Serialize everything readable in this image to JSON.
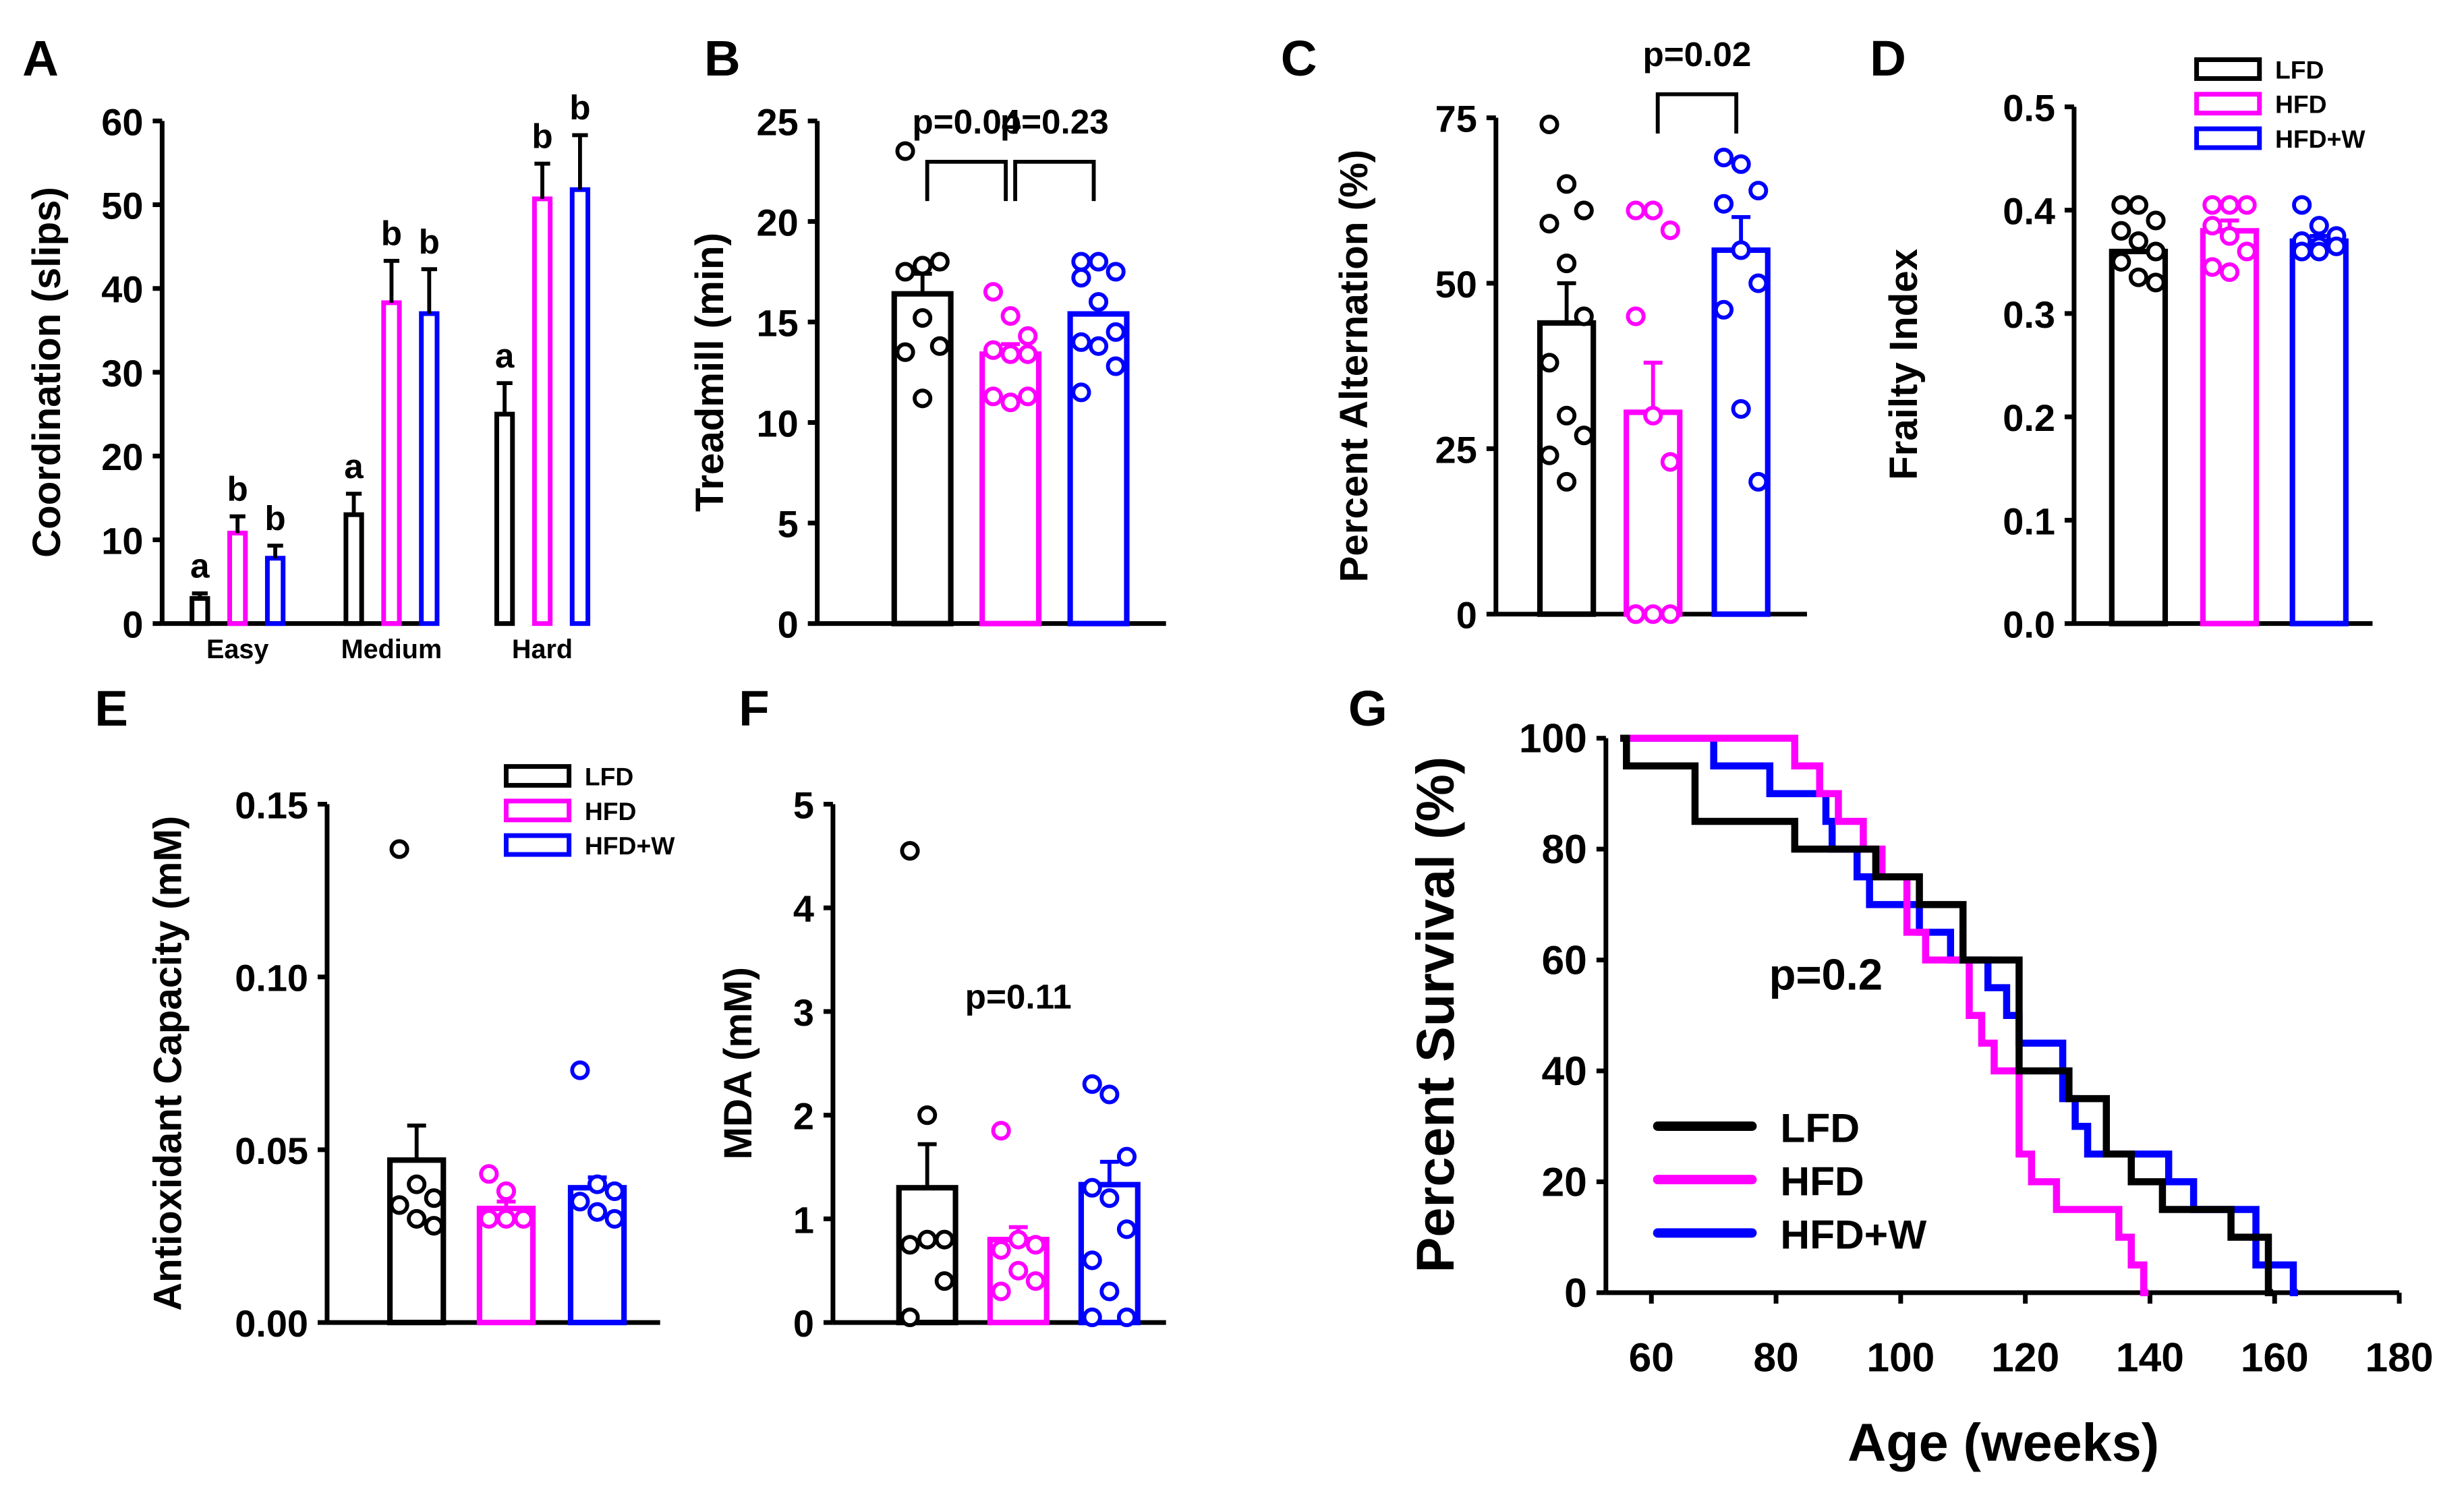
{
  "colors": {
    "LFD": "#000000",
    "HFD": "#ff00ff",
    "HFD+W": "#0000ff"
  },
  "chart_data": [
    {
      "panel": "A",
      "type": "bar",
      "ylabel": "Coordination (slips)",
      "ylim": [
        0,
        60
      ],
      "yticks": [
        0,
        10,
        20,
        30,
        40,
        50,
        60
      ],
      "categories": [
        "Easy",
        "Medium",
        "Hard"
      ],
      "series": [
        {
          "name": "LFD",
          "values": [
            3,
            13,
            25
          ],
          "errors": [
            0.6,
            2.5,
            3.7
          ],
          "letters": [
            "a",
            "a",
            "a"
          ]
        },
        {
          "name": "HFD",
          "values": [
            10.8,
            38.3,
            50.7
          ],
          "errors": [
            2,
            5,
            4.2
          ],
          "letters": [
            "b",
            "b",
            "b"
          ]
        },
        {
          "name": "HFD+W",
          "values": [
            7.8,
            37,
            51.8
          ],
          "errors": [
            1.5,
            5.3,
            6.5
          ],
          "letters": [
            "b",
            "b",
            "b"
          ]
        }
      ]
    },
    {
      "panel": "B",
      "type": "bar",
      "ylabel": "Treadmill (min)",
      "ylim": [
        0,
        25
      ],
      "yticks": [
        0,
        5,
        10,
        15,
        20,
        25
      ],
      "series": [
        {
          "name": "LFD",
          "mean": 16.4,
          "error": 1.0,
          "points": [
            23.5,
            17.8,
            18,
            17.5,
            15.2,
            13.8,
            13.5,
            11.2
          ]
        },
        {
          "name": "HFD",
          "mean": 13.4,
          "error": 0.5,
          "points": [
            16.5,
            15.3,
            14.3,
            13.6,
            13.4,
            13.4,
            11.3,
            11,
            11.3
          ]
        },
        {
          "name": "HFD+W",
          "mean": 15.4,
          "error": 0.7,
          "points": [
            18,
            18,
            17.5,
            17.2,
            16,
            14.5,
            14,
            13.8,
            12.8,
            11.5
          ]
        }
      ],
      "annotations": [
        {
          "text": "p=0.04",
          "between": [
            0,
            1
          ]
        },
        {
          "text": "p=0.23",
          "between": [
            1,
            2
          ]
        }
      ]
    },
    {
      "panel": "C",
      "type": "bar",
      "ylabel": "Percent Alternation (%)",
      "ylim": [
        0,
        75
      ],
      "yticks": [
        0,
        25,
        50,
        75
      ],
      "series": [
        {
          "name": "LFD",
          "mean": 44,
          "error": 6,
          "points": [
            74,
            65,
            61,
            59,
            53,
            45,
            38,
            30,
            27,
            24,
            20
          ]
        },
        {
          "name": "HFD",
          "mean": 30.5,
          "error": 7.5,
          "points": [
            61,
            61,
            58,
            45,
            30,
            23,
            0,
            0,
            0,
            0
          ]
        },
        {
          "name": "HFD+W",
          "mean": 55,
          "error": 5,
          "points": [
            69,
            68,
            64,
            62,
            55,
            50,
            46,
            31,
            20
          ]
        }
      ],
      "annotations": [
        {
          "text": "p=0.02",
          "between": [
            1,
            2
          ]
        }
      ]
    },
    {
      "panel": "D",
      "type": "bar",
      "ylabel": "Frailty Index",
      "ylim": [
        0,
        0.5
      ],
      "yticks": [
        "0.0",
        "0.1",
        "0.2",
        "0.3",
        "0.4",
        "0.5"
      ],
      "legend": "top-right",
      "series": [
        {
          "name": "LFD",
          "mean": 0.36,
          "error": 0.01,
          "points": [
            0.405,
            0.405,
            0.39,
            0.38,
            0.37,
            0.36,
            0.35,
            0.335,
            0.33
          ]
        },
        {
          "name": "HFD",
          "mean": 0.38,
          "error": 0.01,
          "points": [
            0.405,
            0.405,
            0.405,
            0.385,
            0.375,
            0.36,
            0.345,
            0.34
          ]
        },
        {
          "name": "HFD+W",
          "mean": 0.37,
          "error": 0.005,
          "points": [
            0.405,
            0.385,
            0.375,
            0.37,
            0.365,
            0.365,
            0.36,
            0.36
          ]
        }
      ]
    },
    {
      "panel": "E",
      "type": "bar",
      "ylabel": "Antioxidant Capacity (mM)",
      "ylim": [
        0,
        0.15
      ],
      "yticks": [
        "0.00",
        "0.05",
        "0.10",
        "0.15"
      ],
      "legend": "top-right",
      "series": [
        {
          "name": "LFD",
          "mean": 0.047,
          "error": 0.01,
          "points": [
            0.137,
            0.04,
            0.036,
            0.034,
            0.03,
            0.028
          ]
        },
        {
          "name": "HFD",
          "mean": 0.033,
          "error": 0.002,
          "points": [
            0.043,
            0.038,
            0.03,
            0.03,
            0.03
          ]
        },
        {
          "name": "HFD+W",
          "mean": 0.039,
          "error": 0.003,
          "points": [
            0.073,
            0.04,
            0.038,
            0.035,
            0.032,
            0.03
          ]
        }
      ]
    },
    {
      "panel": "F",
      "type": "bar",
      "ylabel": "MDA (mM)",
      "ylim": [
        0,
        5
      ],
      "yticks": [
        0,
        1,
        2,
        3,
        4,
        5
      ],
      "series": [
        {
          "name": "LFD",
          "mean": 1.3,
          "error": 0.42,
          "points": [
            4.55,
            2.0,
            0.8,
            0.75,
            0.8,
            0.4,
            0.05
          ]
        },
        {
          "name": "HFD",
          "mean": 0.8,
          "error": 0.12,
          "points": [
            1.85,
            0.8,
            0.75,
            0.7,
            0.5,
            0.4,
            0.3
          ]
        },
        {
          "name": "HFD+W",
          "mean": 1.33,
          "error": 0.22,
          "points": [
            2.3,
            2.2,
            1.6,
            1.3,
            1.2,
            0.9,
            0.6,
            0.3,
            0.05,
            0.05
          ]
        }
      ],
      "annotations": [
        {
          "text": "p=0.11"
        }
      ]
    },
    {
      "panel": "G",
      "type": "line",
      "ylabel": "Percent Survival (%)",
      "xlabel": "Age (weeks)",
      "xlim": [
        52.7,
        180
      ],
      "ylim": [
        0,
        100
      ],
      "xticks": [
        60,
        80,
        100,
        120,
        140,
        160,
        180
      ],
      "yticks": [
        0,
        20,
        40,
        60,
        80,
        100
      ],
      "legend": "bottom-left",
      "annotation": "p=0.2",
      "series": [
        {
          "name": "LFD",
          "steps": [
            [
              55,
              100
            ],
            [
              56,
              95
            ],
            [
              67,
              85
            ],
            [
              83,
              80
            ],
            [
              96,
              75
            ],
            [
              103,
              70
            ],
            [
              110,
              60
            ],
            [
              119,
              40
            ],
            [
              127,
              35
            ],
            [
              133,
              25
            ],
            [
              137,
              20
            ],
            [
              142,
              15
            ],
            [
              153,
              10
            ],
            [
              159,
              0
            ]
          ]
        },
        {
          "name": "HFD",
          "steps": [
            [
              55,
              100
            ],
            [
              83,
              95
            ],
            [
              87,
              90
            ],
            [
              90,
              85
            ],
            [
              94,
              80
            ],
            [
              97,
              75
            ],
            [
              101,
              65
            ],
            [
              104,
              60
            ],
            [
              111,
              50
            ],
            [
              113,
              45
            ],
            [
              115,
              40
            ],
            [
              119,
              25
            ],
            [
              121,
              20
            ],
            [
              125,
              15
            ],
            [
              135,
              10
            ],
            [
              137,
              5
            ],
            [
              139,
              0
            ]
          ]
        },
        {
          "name": "HFD+W",
          "steps": [
            [
              55,
              100
            ],
            [
              70,
              95
            ],
            [
              79,
              90
            ],
            [
              88,
              85
            ],
            [
              89,
              80
            ],
            [
              93,
              75
            ],
            [
              95,
              70
            ],
            [
              103,
              65
            ],
            [
              108,
              60
            ],
            [
              114,
              55
            ],
            [
              117,
              50
            ],
            [
              119,
              45
            ],
            [
              126,
              35
            ],
            [
              128,
              30
            ],
            [
              130,
              25
            ],
            [
              143,
              20
            ],
            [
              147,
              15
            ],
            [
              157,
              5
            ],
            [
              163,
              0
            ]
          ]
        }
      ]
    }
  ]
}
